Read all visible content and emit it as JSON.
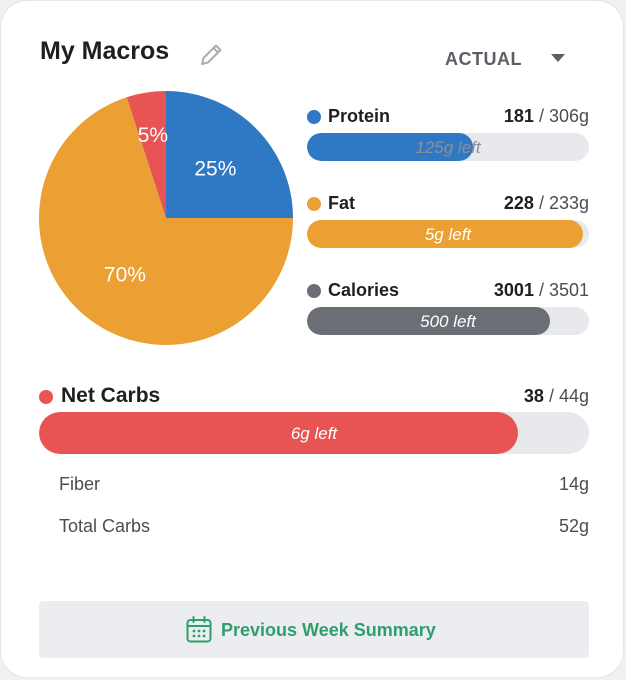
{
  "header": {
    "title": "My Macros",
    "view_selector": "ACTUAL"
  },
  "chart_data": {
    "type": "pie",
    "slices": [
      {
        "name": "Protein",
        "value": 25,
        "label": "25%",
        "color": "#2f78c4"
      },
      {
        "name": "Fat",
        "value": 70,
        "label": "70%",
        "color": "#ec9f33"
      },
      {
        "name": "Carbs",
        "value": 5,
        "label": "5%",
        "color": "#e85353"
      }
    ]
  },
  "macros": {
    "protein": {
      "name": "Protein",
      "current": "181",
      "target": " / 306g",
      "left": "125g left",
      "fraction": 0.59,
      "color": "#2f78c4"
    },
    "fat": {
      "name": "Fat",
      "current": "228",
      "target": " / 233g",
      "left": "5g left",
      "fraction": 0.98,
      "color": "#ec9f33"
    },
    "calories": {
      "name": "Calories",
      "current": "3001",
      "target": " / 3501",
      "left": "500 left",
      "fraction": 0.86,
      "color": "#6b6e74"
    }
  },
  "net_carbs": {
    "name": "Net Carbs",
    "current": "38",
    "target": " / 44g",
    "left": "6g left",
    "fraction": 0.87,
    "color": "#e85353"
  },
  "details": [
    {
      "label": "Fiber",
      "value": "14g"
    },
    {
      "label": "Total Carbs",
      "value": "52g"
    }
  ],
  "summary_button": {
    "label": "Previous Week Summary",
    "color": "#2e9f6c"
  }
}
